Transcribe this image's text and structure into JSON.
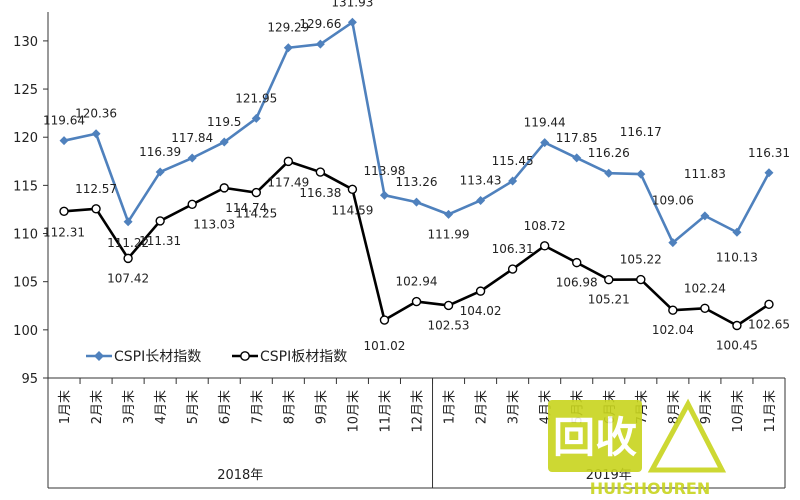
{
  "chart_data": {
    "type": "line",
    "categories": [
      "1月末",
      "2月末",
      "3月末",
      "4月末",
      "5月末",
      "6月末",
      "7月末",
      "8月末",
      "9月末",
      "10月末",
      "11月末",
      "12月末",
      "1月末",
      "2月末",
      "3月末",
      "4月末",
      "5月末",
      "6月末",
      "7月末",
      "8月末",
      "9月末",
      "10月末",
      "11月末"
    ],
    "year_groups": [
      {
        "label": "2018年",
        "count": 12
      },
      {
        "label": "2019年",
        "count": 11
      }
    ],
    "series": [
      {
        "name": "CSPI长材指数",
        "color": "#4f81bd",
        "values": [
          119.64,
          120.36,
          111.22,
          116.39,
          117.84,
          119.5,
          121.95,
          129.29,
          129.66,
          131.93,
          113.98,
          113.26,
          111.99,
          113.43,
          115.45,
          119.44,
          117.85,
          116.26,
          116.17,
          109.06,
          111.83,
          110.13,
          116.31
        ]
      },
      {
        "name": "CSPI板材指数",
        "color": "#000000",
        "values": [
          112.31,
          112.57,
          107.42,
          111.31,
          113.03,
          114.74,
          114.25,
          117.49,
          116.38,
          114.59,
          101.02,
          102.94,
          102.53,
          104.02,
          106.31,
          108.72,
          106.98,
          105.21,
          105.22,
          102.04,
          102.24,
          100.45,
          102.65
        ]
      }
    ],
    "ylim": [
      95,
      133
    ],
    "yticks": [
      95,
      100,
      105,
      110,
      115,
      120,
      125,
      130
    ],
    "grid": false,
    "legend_position": "lower-left"
  },
  "watermark": {
    "main": "回收",
    "sub": "HUISHOUREN"
  }
}
